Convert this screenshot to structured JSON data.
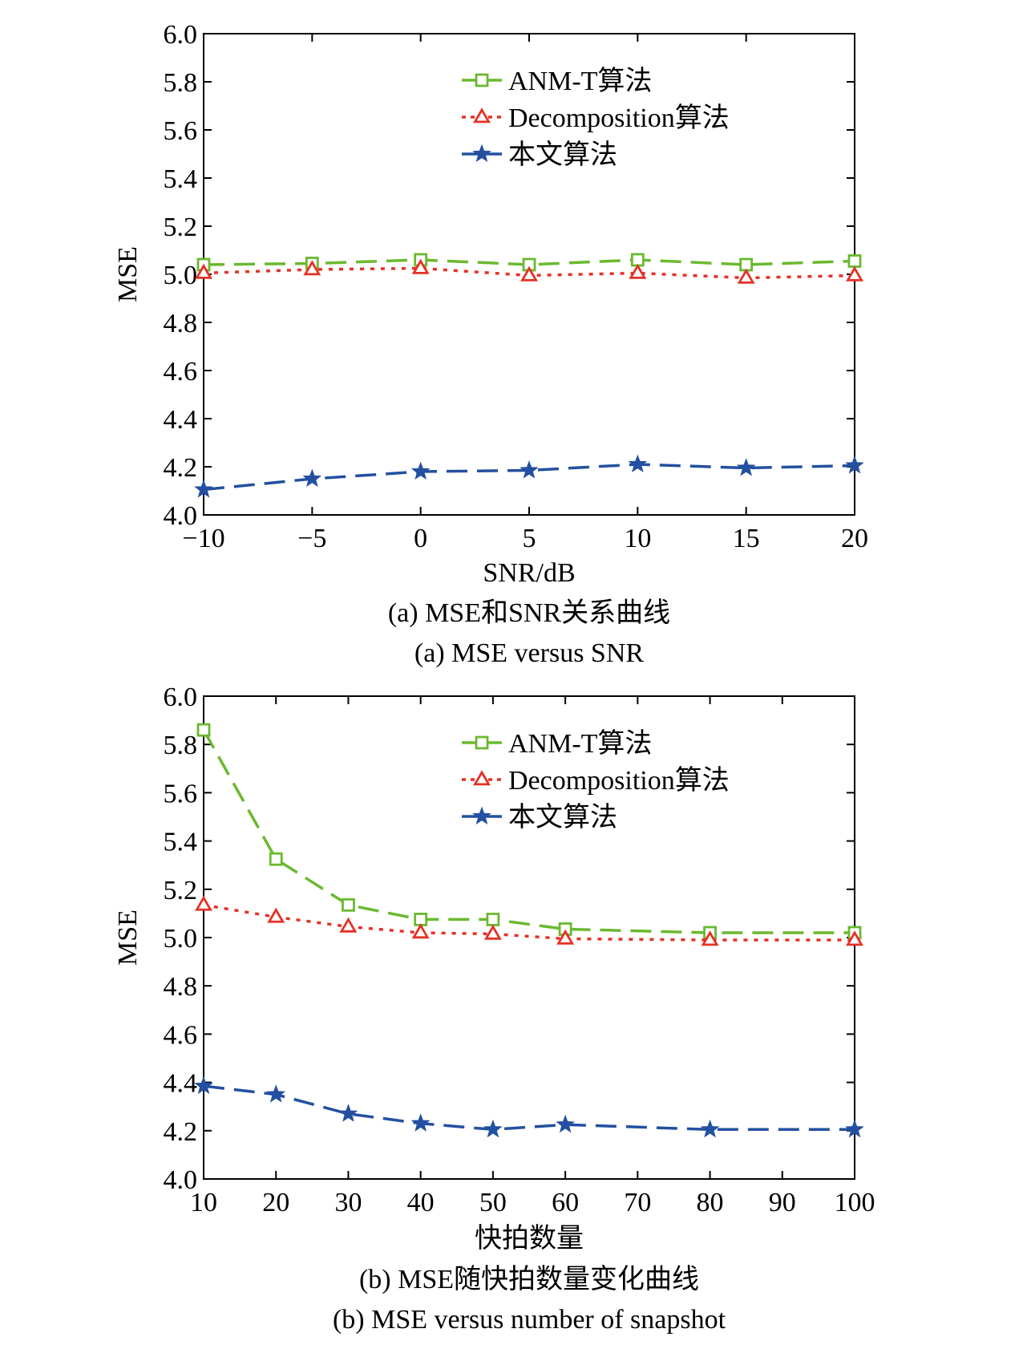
{
  "colors": {
    "anm": "#6ab92f",
    "dec": "#e53125",
    "ours": "#2350a0",
    "axis": "#000000"
  },
  "chart_data": [
    {
      "type": "line",
      "title": "",
      "xlabel": "SNR/dB",
      "ylabel": "MSE",
      "xlim": [
        -10,
        20
      ],
      "ylim": [
        4.0,
        6.0
      ],
      "xticks": [
        "−10",
        "−5",
        "0",
        "5",
        "10",
        "15",
        "20"
      ],
      "yticks": [
        "4.0",
        "4.2",
        "4.4",
        "4.6",
        "4.8",
        "5.0",
        "5.2",
        "5.4",
        "5.6",
        "5.8",
        "6.0"
      ],
      "x": [
        -10,
        -5,
        0,
        5,
        10,
        15,
        20
      ],
      "legend_position": "top-right",
      "series": [
        {
          "name": "ANM-T算法",
          "values": [
            5.04,
            5.045,
            5.06,
            5.04,
            5.06,
            5.04,
            5.055
          ]
        },
        {
          "name": "Decomposition算法",
          "values": [
            5.005,
            5.02,
            5.025,
            4.995,
            5.005,
            4.985,
            4.995
          ]
        },
        {
          "name": "本文算法",
          "values": [
            4.105,
            4.15,
            4.18,
            4.185,
            4.21,
            4.195,
            4.205
          ]
        }
      ],
      "caption_cn": "(a) MSE和SNR关系曲线",
      "caption_en": "(a) MSE versus SNR"
    },
    {
      "type": "line",
      "title": "",
      "xlabel": "快拍数量",
      "ylabel": "MSE",
      "xlim": [
        10,
        100
      ],
      "ylim": [
        4.0,
        6.0
      ],
      "xticks": [
        "10",
        "20",
        "30",
        "40",
        "50",
        "60",
        "70",
        "80",
        "90",
        "100"
      ],
      "yticks": [
        "4.0",
        "4.2",
        "4.4",
        "4.6",
        "4.8",
        "5.0",
        "5.2",
        "5.4",
        "5.6",
        "5.8",
        "6.0"
      ],
      "x": [
        10,
        20,
        30,
        40,
        50,
        60,
        80,
        100
      ],
      "legend_position": "top-right",
      "series": [
        {
          "name": "ANM-T算法",
          "values": [
            5.86,
            5.325,
            5.135,
            5.075,
            5.075,
            5.035,
            5.02,
            5.02
          ]
        },
        {
          "name": "Decomposition算法",
          "values": [
            5.135,
            5.085,
            5.045,
            5.02,
            5.015,
            4.995,
            4.99,
            4.99
          ]
        },
        {
          "name": "本文算法",
          "values": [
            4.385,
            4.35,
            4.27,
            4.23,
            4.205,
            4.225,
            4.205,
            4.205
          ]
        }
      ],
      "caption_cn": "(b) MSE随快拍数量变化曲线",
      "caption_en": "(b) MSE versus number of snapshot"
    }
  ]
}
